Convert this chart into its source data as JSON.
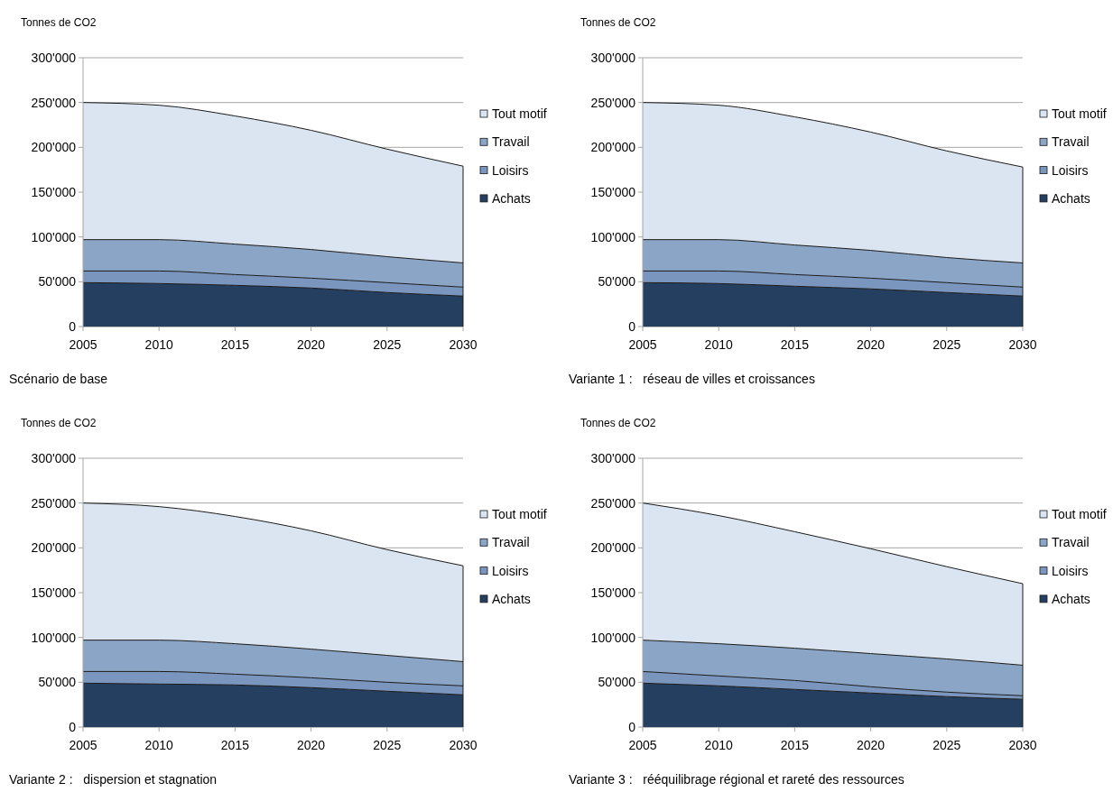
{
  "chart_data": [
    {
      "type": "area",
      "stacked": true,
      "title": "Scénario de base",
      "ylabel": "Tonnes de CO2",
      "x": [
        2005,
        2010,
        2015,
        2020,
        2025,
        2030
      ],
      "xlim": [
        2005,
        2030
      ],
      "xticks": [
        2005,
        2010,
        2015,
        2020,
        2025,
        2030
      ],
      "ylim": [
        0,
        300000
      ],
      "yticks": [
        {
          "value": 0,
          "label": "0"
        },
        {
          "value": 50000,
          "label": "50'000"
        },
        {
          "value": 100000,
          "label": "100'000"
        },
        {
          "value": 150000,
          "label": "150'000"
        },
        {
          "value": 200000,
          "label": "200'000"
        },
        {
          "value": 250000,
          "label": "250'000"
        },
        {
          "value": 300000,
          "label": "300'000"
        }
      ],
      "grid": "y",
      "legend": "right",
      "series": [
        {
          "name": "Achats",
          "color": "#243f60",
          "values": [
            49000,
            48000,
            46000,
            43000,
            38000,
            34000
          ]
        },
        {
          "name": "Loisirs",
          "color": "#7a96bf",
          "values": [
            13000,
            14000,
            12000,
            11000,
            11000,
            10000
          ]
        },
        {
          "name": "Travail",
          "color": "#8aa5c5",
          "values": [
            35000,
            35000,
            34000,
            32000,
            29000,
            27000
          ]
        },
        {
          "name": "Tout motif",
          "color": "#dbe5f1",
          "values": [
            153000,
            150000,
            143000,
            133000,
            120000,
            108000
          ]
        }
      ]
    },
    {
      "type": "area",
      "stacked": true,
      "title": "Variante 1 :   réseau de villes et croissances",
      "ylabel": "Tonnes de CO2",
      "x": [
        2005,
        2010,
        2015,
        2020,
        2025,
        2030
      ],
      "xlim": [
        2005,
        2030
      ],
      "xticks": [
        2005,
        2010,
        2015,
        2020,
        2025,
        2030
      ],
      "ylim": [
        0,
        300000
      ],
      "yticks": [
        {
          "value": 0,
          "label": "0"
        },
        {
          "value": 50000,
          "label": "50'000"
        },
        {
          "value": 100000,
          "label": "100'000"
        },
        {
          "value": 150000,
          "label": "150'000"
        },
        {
          "value": 200000,
          "label": "200'000"
        },
        {
          "value": 250000,
          "label": "250'000"
        },
        {
          "value": 300000,
          "label": "300'000"
        }
      ],
      "grid": "y",
      "legend": "right",
      "series": [
        {
          "name": "Achats",
          "color": "#243f60",
          "values": [
            49000,
            48000,
            45000,
            42000,
            38000,
            34000
          ]
        },
        {
          "name": "Loisirs",
          "color": "#7a96bf",
          "values": [
            13000,
            14000,
            13000,
            12000,
            11000,
            10000
          ]
        },
        {
          "name": "Travail",
          "color": "#8aa5c5",
          "values": [
            35000,
            35000,
            33000,
            31000,
            28000,
            27000
          ]
        },
        {
          "name": "Tout motif",
          "color": "#dbe5f1",
          "values": [
            153000,
            150000,
            143000,
            132000,
            119000,
            107000
          ]
        }
      ]
    },
    {
      "type": "area",
      "stacked": true,
      "title": "Variante 2 :   dispersion et stagnation",
      "ylabel": "Tonnes de CO2",
      "x": [
        2005,
        2010,
        2015,
        2020,
        2025,
        2030
      ],
      "xlim": [
        2005,
        2030
      ],
      "xticks": [
        2005,
        2010,
        2015,
        2020,
        2025,
        2030
      ],
      "ylim": [
        0,
        300000
      ],
      "yticks": [
        {
          "value": 0,
          "label": "0"
        },
        {
          "value": 50000,
          "label": "50'000"
        },
        {
          "value": 100000,
          "label": "100'000"
        },
        {
          "value": 150000,
          "label": "150'000"
        },
        {
          "value": 200000,
          "label": "200'000"
        },
        {
          "value": 250000,
          "label": "250'000"
        },
        {
          "value": 300000,
          "label": "300'000"
        }
      ],
      "grid": "y",
      "legend": "right",
      "series": [
        {
          "name": "Achats",
          "color": "#243f60",
          "values": [
            49000,
            48000,
            47000,
            44000,
            40000,
            36000
          ]
        },
        {
          "name": "Loisirs",
          "color": "#7a96bf",
          "values": [
            13000,
            14000,
            12000,
            11000,
            10000,
            10000
          ]
        },
        {
          "name": "Travail",
          "color": "#8aa5c5",
          "values": [
            35000,
            35000,
            34000,
            32000,
            30000,
            27000
          ]
        },
        {
          "name": "Tout motif",
          "color": "#dbe5f1",
          "values": [
            153000,
            149000,
            142000,
            132000,
            118000,
            107000
          ]
        }
      ]
    },
    {
      "type": "area",
      "stacked": true,
      "title": "Variante 3 :   rééquilibrage régional et rareté des ressources",
      "ylabel": "Tonnes de CO2",
      "x": [
        2005,
        2010,
        2015,
        2020,
        2025,
        2030
      ],
      "xlim": [
        2005,
        2030
      ],
      "xticks": [
        2005,
        2010,
        2015,
        2020,
        2025,
        2030
      ],
      "ylim": [
        0,
        300000
      ],
      "yticks": [
        {
          "value": 0,
          "label": "0"
        },
        {
          "value": 50000,
          "label": "50'000"
        },
        {
          "value": 100000,
          "label": "100'000"
        },
        {
          "value": 150000,
          "label": "150'000"
        },
        {
          "value": 200000,
          "label": "200'000"
        },
        {
          "value": 250000,
          "label": "250'000"
        },
        {
          "value": 300000,
          "label": "300'000"
        }
      ],
      "grid": "y",
      "legend": "right",
      "series": [
        {
          "name": "Achats",
          "color": "#243f60",
          "values": [
            49000,
            46000,
            42000,
            38000,
            34000,
            31000
          ]
        },
        {
          "name": "Loisirs",
          "color": "#7a96bf",
          "values": [
            13000,
            11000,
            10000,
            7000,
            5000,
            4000
          ]
        },
        {
          "name": "Travail",
          "color": "#8aa5c5",
          "values": [
            35000,
            36000,
            36000,
            37000,
            37000,
            34000
          ]
        },
        {
          "name": "Tout motif",
          "color": "#dbe5f1",
          "values": [
            153000,
            143000,
            130000,
            117000,
            103000,
            91000
          ]
        }
      ]
    }
  ]
}
